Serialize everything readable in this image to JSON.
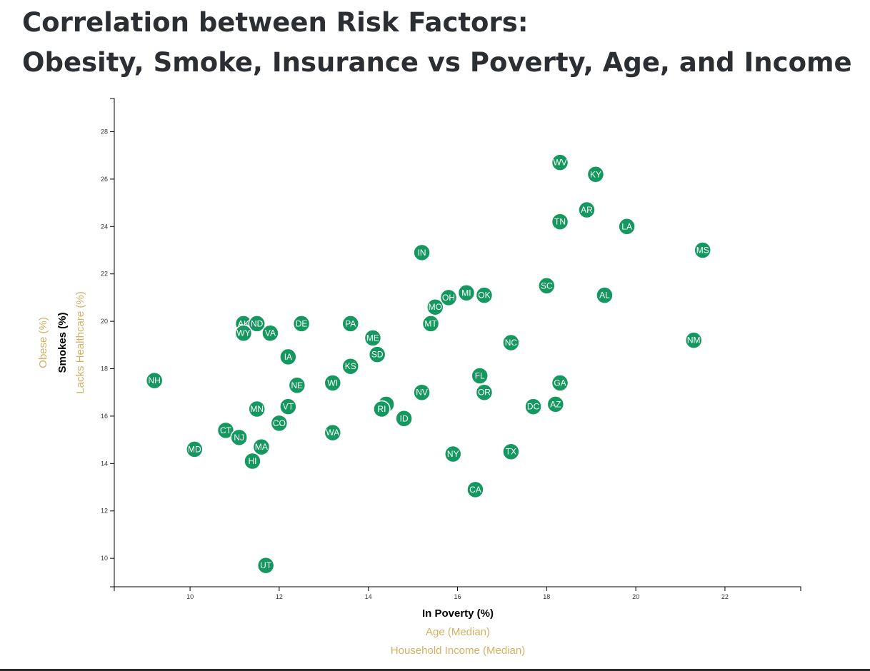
{
  "page": {
    "title_line1": "Correlation between Risk Factors:",
    "title_line2": "Obesity, Smoke, Insurance vs Poverty, Age, and Income"
  },
  "chart_data": {
    "type": "scatter",
    "x_axis": {
      "active_label": "In Poverty (%)",
      "other_labels": [
        "Age (Median)",
        "Household Income (Median)"
      ],
      "range": [
        8.3,
        23.7
      ],
      "ticks": [
        10,
        12,
        14,
        16,
        18,
        20,
        22
      ]
    },
    "y_axis": {
      "active_label": "Smokes (%)",
      "other_labels": [
        "Lacks Healthcare (%)",
        "Obese (%)"
      ],
      "range": [
        8.8,
        29.4
      ],
      "ticks": [
        10,
        12,
        14,
        16,
        18,
        20,
        22,
        24,
        26,
        28
      ]
    },
    "colors": {
      "marker": "#15985f",
      "inactive_label": "#d4b062"
    },
    "points": [
      {
        "abbr": "WV",
        "x": 18.3,
        "y": 26.7
      },
      {
        "abbr": "KY",
        "x": 19.1,
        "y": 26.2
      },
      {
        "abbr": "AR",
        "x": 18.9,
        "y": 24.7
      },
      {
        "abbr": "TN",
        "x": 18.3,
        "y": 24.2
      },
      {
        "abbr": "LA",
        "x": 19.8,
        "y": 24.0
      },
      {
        "abbr": "MS",
        "x": 21.5,
        "y": 23.0
      },
      {
        "abbr": "IN",
        "x": 15.2,
        "y": 22.9
      },
      {
        "abbr": "SC",
        "x": 18.0,
        "y": 21.5
      },
      {
        "abbr": "AL",
        "x": 19.3,
        "y": 21.1
      },
      {
        "abbr": "MI",
        "x": 16.2,
        "y": 21.2
      },
      {
        "abbr": "OK",
        "x": 16.6,
        "y": 21.1
      },
      {
        "abbr": "OH",
        "x": 15.8,
        "y": 21.0
      },
      {
        "abbr": "MO",
        "x": 15.5,
        "y": 20.6
      },
      {
        "abbr": "MT",
        "x": 15.4,
        "y": 19.9
      },
      {
        "abbr": "AK",
        "x": 11.2,
        "y": 19.9
      },
      {
        "abbr": "ND",
        "x": 11.5,
        "y": 19.9
      },
      {
        "abbr": "DE",
        "x": 12.5,
        "y": 19.9
      },
      {
        "abbr": "PA",
        "x": 13.6,
        "y": 19.9
      },
      {
        "abbr": "WY",
        "x": 11.2,
        "y": 19.5
      },
      {
        "abbr": "VA",
        "x": 11.8,
        "y": 19.5
      },
      {
        "abbr": "ME",
        "x": 14.1,
        "y": 19.3
      },
      {
        "abbr": "NC",
        "x": 17.2,
        "y": 19.1
      },
      {
        "abbr": "NM",
        "x": 21.3,
        "y": 19.2
      },
      {
        "abbr": "SD",
        "x": 14.2,
        "y": 18.6
      },
      {
        "abbr": "IA",
        "x": 12.2,
        "y": 18.5
      },
      {
        "abbr": "KS",
        "x": 13.6,
        "y": 18.1
      },
      {
        "abbr": "FL",
        "x": 16.5,
        "y": 17.7
      },
      {
        "abbr": "NH",
        "x": 9.2,
        "y": 17.5
      },
      {
        "abbr": "WI",
        "x": 13.2,
        "y": 17.4
      },
      {
        "abbr": "GA",
        "x": 18.3,
        "y": 17.4
      },
      {
        "abbr": "NE",
        "x": 12.4,
        "y": 17.3
      },
      {
        "abbr": "NV",
        "x": 15.2,
        "y": 17.0
      },
      {
        "abbr": "OR",
        "x": 16.6,
        "y": 17.0
      },
      {
        "abbr": "IL",
        "x": 14.4,
        "y": 16.5
      },
      {
        "abbr": "AZ",
        "x": 18.2,
        "y": 16.5
      },
      {
        "abbr": "DC",
        "x": 17.7,
        "y": 16.4
      },
      {
        "abbr": "VT",
        "x": 12.2,
        "y": 16.4
      },
      {
        "abbr": "MN",
        "x": 11.5,
        "y": 16.3
      },
      {
        "abbr": "RI",
        "x": 14.3,
        "y": 16.3
      },
      {
        "abbr": "ID",
        "x": 14.8,
        "y": 15.9
      },
      {
        "abbr": "CO",
        "x": 12.0,
        "y": 15.7
      },
      {
        "abbr": "CT",
        "x": 10.8,
        "y": 15.4
      },
      {
        "abbr": "WA",
        "x": 13.2,
        "y": 15.3
      },
      {
        "abbr": "NJ",
        "x": 11.1,
        "y": 15.1
      },
      {
        "abbr": "MA",
        "x": 11.6,
        "y": 14.7
      },
      {
        "abbr": "MD",
        "x": 10.1,
        "y": 14.6
      },
      {
        "abbr": "TX",
        "x": 17.2,
        "y": 14.5
      },
      {
        "abbr": "NY",
        "x": 15.9,
        "y": 14.4
      },
      {
        "abbr": "HI",
        "x": 11.4,
        "y": 14.1
      },
      {
        "abbr": "CA",
        "x": 16.4,
        "y": 12.9
      },
      {
        "abbr": "UT",
        "x": 11.7,
        "y": 9.7
      }
    ]
  }
}
